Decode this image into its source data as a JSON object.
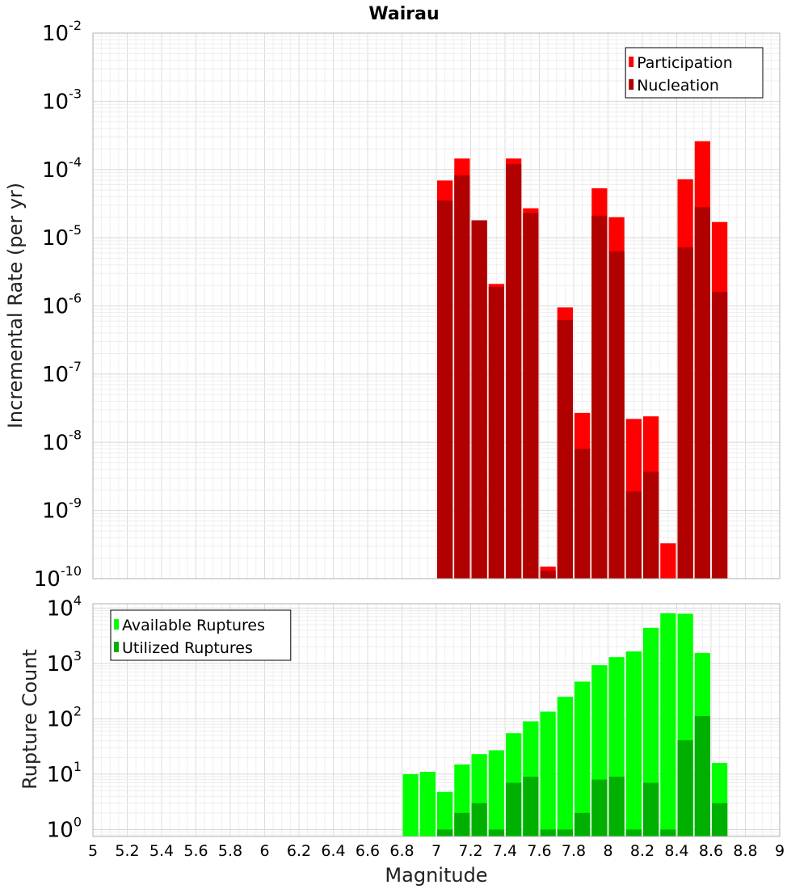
{
  "chart_data": [
    {
      "type": "bar",
      "title": "Wairau",
      "xlabel": "",
      "ylabel": "Incremental Rate (per yr)",
      "yscale": "log",
      "ylim": [
        1e-10,
        0.01
      ],
      "xlim": [
        5,
        9
      ],
      "grid": true,
      "legend_position": "top-right",
      "y_ticks": [
        {
          "base": "10",
          "exp": "-10"
        },
        {
          "base": "10",
          "exp": "-9"
        },
        {
          "base": "10",
          "exp": "-8"
        },
        {
          "base": "10",
          "exp": "-7"
        },
        {
          "base": "10",
          "exp": "-6"
        },
        {
          "base": "10",
          "exp": "-5"
        },
        {
          "base": "10",
          "exp": "-4"
        },
        {
          "base": "10",
          "exp": "-3"
        },
        {
          "base": "10",
          "exp": "-2"
        }
      ],
      "series": [
        {
          "name": "Participation",
          "color": "#ff0000",
          "points": [
            {
              "x": 7.05,
              "y": 6.9e-05
            },
            {
              "x": 7.15,
              "y": 0.000145
            },
            {
              "x": 7.25,
              "y": 1.8e-05
            },
            {
              "x": 7.35,
              "y": 2.1e-06
            },
            {
              "x": 7.45,
              "y": 0.000145
            },
            {
              "x": 7.55,
              "y": 2.7e-05
            },
            {
              "x": 7.65,
              "y": 1.5e-10
            },
            {
              "x": 7.75,
              "y": 9.5e-07
            },
            {
              "x": 7.85,
              "y": 2.7e-08
            },
            {
              "x": 7.95,
              "y": 5.3e-05
            },
            {
              "x": 8.05,
              "y": 2e-05
            },
            {
              "x": 8.15,
              "y": 2.2e-08
            },
            {
              "x": 8.25,
              "y": 2.4e-08
            },
            {
              "x": 8.35,
              "y": 3.3e-10
            },
            {
              "x": 8.45,
              "y": 7.2e-05
            },
            {
              "x": 8.55,
              "y": 0.00026
            },
            {
              "x": 8.65,
              "y": 1.7e-05
            }
          ]
        },
        {
          "name": "Nucleation",
          "color": "#b00000",
          "points": [
            {
              "x": 7.05,
              "y": 3.5e-05
            },
            {
              "x": 7.15,
              "y": 8.2e-05
            },
            {
              "x": 7.25,
              "y": 1.8e-05
            },
            {
              "x": 7.35,
              "y": 1.9e-06
            },
            {
              "x": 7.45,
              "y": 0.00012
            },
            {
              "x": 7.55,
              "y": 2.3e-05
            },
            {
              "x": 7.65,
              "y": 1.3e-10
            },
            {
              "x": 7.75,
              "y": 6.2e-07
            },
            {
              "x": 7.85,
              "y": 8e-09
            },
            {
              "x": 7.95,
              "y": 2.1e-05
            },
            {
              "x": 8.05,
              "y": 6.3e-06
            },
            {
              "x": 8.15,
              "y": 1.9e-09
            },
            {
              "x": 8.25,
              "y": 3.7e-09
            },
            {
              "x": 8.45,
              "y": 7.2e-06
            },
            {
              "x": 8.55,
              "y": 2.8e-05
            },
            {
              "x": 8.65,
              "y": 1.6e-06
            }
          ]
        }
      ]
    },
    {
      "type": "bar",
      "title": "",
      "xlabel": "Magnitude",
      "ylabel": "Rupture Count",
      "yscale": "log",
      "ylim": [
        0.75,
        12000
      ],
      "xlim": [
        5,
        9
      ],
      "grid": true,
      "legend_position": "top-left",
      "x_ticks": [
        "5",
        "5.2",
        "5.4",
        "5.6",
        "5.8",
        "6",
        "6.2",
        "6.4",
        "6.6",
        "6.8",
        "7",
        "7.2",
        "7.4",
        "7.6",
        "7.8",
        "8",
        "8.2",
        "8.4",
        "8.6",
        "8.8",
        "9"
      ],
      "y_ticks": [
        {
          "base": "10",
          "exp": "0"
        },
        {
          "base": "10",
          "exp": "1"
        },
        {
          "base": "10",
          "exp": "2"
        },
        {
          "base": "10",
          "exp": "3"
        },
        {
          "base": "10",
          "exp": "4"
        }
      ],
      "series": [
        {
          "name": "Available Ruptures",
          "color": "#00ff00",
          "points": [
            {
              "x": 6.85,
              "y": 10
            },
            {
              "x": 6.95,
              "y": 11
            },
            {
              "x": 7.05,
              "y": 4.8
            },
            {
              "x": 7.15,
              "y": 15
            },
            {
              "x": 7.25,
              "y": 23
            },
            {
              "x": 7.35,
              "y": 27
            },
            {
              "x": 7.45,
              "y": 55
            },
            {
              "x": 7.55,
              "y": 90
            },
            {
              "x": 7.65,
              "y": 135
            },
            {
              "x": 7.75,
              "y": 250
            },
            {
              "x": 7.85,
              "y": 470
            },
            {
              "x": 7.95,
              "y": 930
            },
            {
              "x": 8.05,
              "y": 1300
            },
            {
              "x": 8.15,
              "y": 1650
            },
            {
              "x": 8.25,
              "y": 4400
            },
            {
              "x": 8.35,
              "y": 8100
            },
            {
              "x": 8.45,
              "y": 7900
            },
            {
              "x": 8.55,
              "y": 1550
            },
            {
              "x": 8.65,
              "y": 16
            }
          ]
        },
        {
          "name": "Utilized Ruptures",
          "color": "#00b000",
          "points": [
            {
              "x": 7.05,
              "y": 1
            },
            {
              "x": 7.15,
              "y": 2
            },
            {
              "x": 7.25,
              "y": 3
            },
            {
              "x": 7.35,
              "y": 1
            },
            {
              "x": 7.45,
              "y": 7
            },
            {
              "x": 7.55,
              "y": 9
            },
            {
              "x": 7.65,
              "y": 1
            },
            {
              "x": 7.75,
              "y": 1
            },
            {
              "x": 7.85,
              "y": 2
            },
            {
              "x": 7.95,
              "y": 8
            },
            {
              "x": 8.05,
              "y": 9
            },
            {
              "x": 8.15,
              "y": 1
            },
            {
              "x": 8.25,
              "y": 7
            },
            {
              "x": 8.35,
              "y": 1
            },
            {
              "x": 8.45,
              "y": 41
            },
            {
              "x": 8.55,
              "y": 112
            },
            {
              "x": 8.65,
              "y": 3
            }
          ]
        }
      ]
    }
  ]
}
